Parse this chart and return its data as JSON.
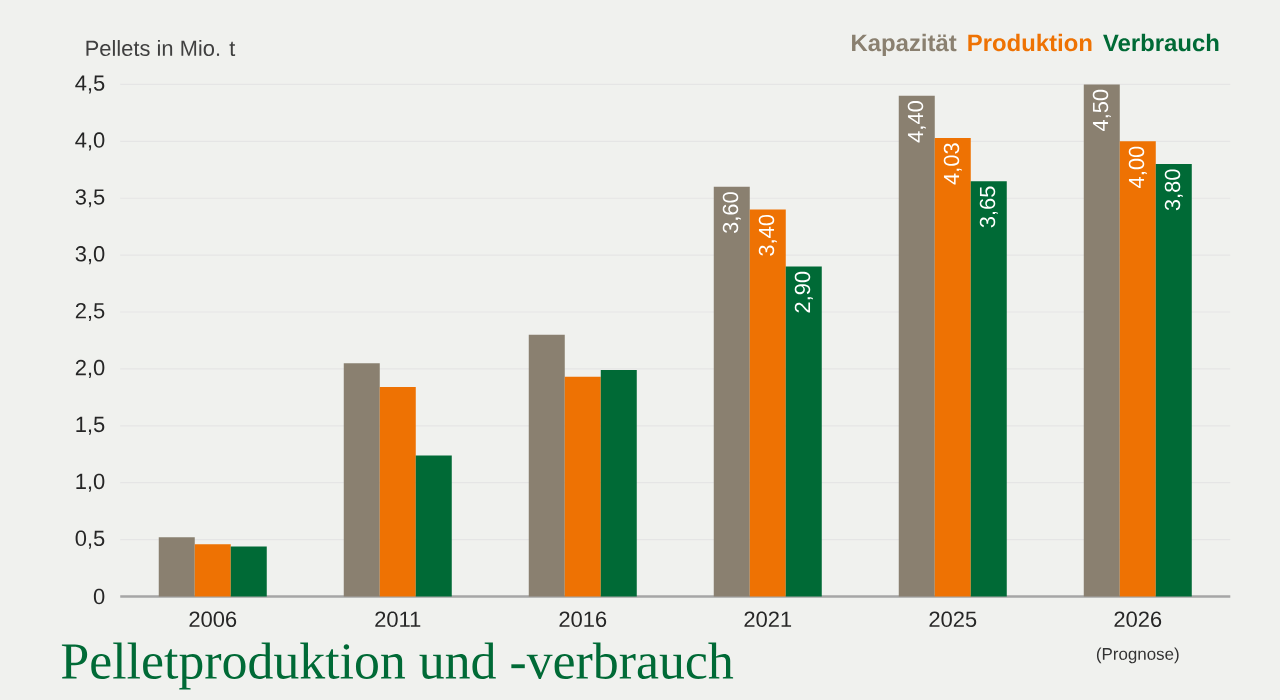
{
  "chart_data": {
    "type": "bar",
    "title": "Pelletproduktion und -verbrauch",
    "ylabel": "Pellets in Mio. t",
    "categories": [
      "2006",
      "2011",
      "2016",
      "2021",
      "2025",
      "2026"
    ],
    "annotations": [
      "(Prognose)"
    ],
    "series": [
      {
        "name": "Kapazität",
        "color": "#8a8070",
        "values": [
          0.52,
          2.05,
          2.3,
          3.6,
          4.4,
          4.5
        ],
        "value_labels": [
          null,
          null,
          null,
          "3,60",
          "4,40",
          "4,50"
        ]
      },
      {
        "name": "Produktion",
        "color": "#ee7203",
        "values": [
          0.46,
          1.84,
          1.93,
          3.4,
          4.03,
          4.0
        ],
        "value_labels": [
          null,
          null,
          null,
          "3,40",
          "4,03",
          "4,00"
        ]
      },
      {
        "name": "Verbrauch",
        "color": "#006a36",
        "values": [
          0.44,
          1.24,
          1.99,
          2.9,
          3.65,
          3.8
        ],
        "value_labels": [
          null,
          null,
          null,
          "2,90",
          "3,65",
          "3,80"
        ]
      }
    ],
    "ylim": [
      0,
      4.5
    ],
    "yticks": [
      0,
      {
        "value": 0.5,
        "label": "0,5"
      },
      {
        "value": 1.0,
        "label": "1,0"
      },
      {
        "value": 1.5,
        "label": "1,5"
      },
      {
        "value": 2.0,
        "label": "2,0"
      },
      {
        "value": 2.5,
        "label": "2,5"
      },
      {
        "value": 3.0,
        "label": "3,0"
      },
      {
        "value": 3.5,
        "label": "3,5"
      },
      {
        "value": 4.0,
        "label": "4,0"
      },
      {
        "value": 4.5,
        "label": "4,5"
      }
    ],
    "grid": "y",
    "legend": "top right"
  }
}
